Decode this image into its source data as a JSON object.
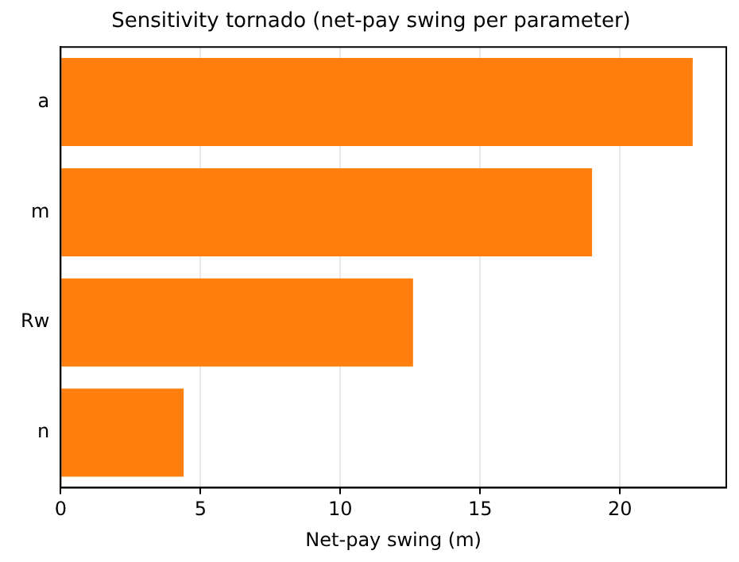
{
  "chart_data": {
    "type": "bar",
    "orientation": "horizontal",
    "title": "Sensitivity tornado (net-pay swing per parameter)",
    "xlabel": "Net-pay swing (m)",
    "categories": [
      "a",
      "m",
      "Rw",
      "n"
    ],
    "values": [
      22.6,
      19.0,
      12.6,
      4.4
    ],
    "color": "#ff7f0e",
    "xlim": [
      0,
      23.8
    ],
    "xticks": [
      0,
      5,
      10,
      15,
      20
    ],
    "grid": "x",
    "legend": false
  }
}
